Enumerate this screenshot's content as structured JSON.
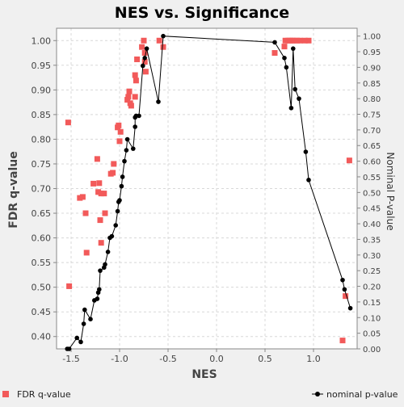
{
  "chart_data": {
    "type": "scatter",
    "title": "NES vs. Significance",
    "xlabel": "NES",
    "ylabel": "FDR q-value",
    "y2label": "Nominal P-value",
    "xlim": [
      -1.65,
      1.45
    ],
    "ylim": [
      0.375,
      1.025
    ],
    "y2lim": [
      0.0,
      1.025
    ],
    "xticks": [
      "-1.5",
      "-1.0",
      "-0.5",
      "0.0",
      "0.5",
      "1.0"
    ],
    "xtick_values": [
      -1.5,
      -1.0,
      -0.5,
      0.0,
      0.5,
      1.0
    ],
    "yticks": [
      "0.40",
      "0.45",
      "0.50",
      "0.55",
      "0.60",
      "0.65",
      "0.70",
      "0.75",
      "0.80",
      "0.85",
      "0.90",
      "0.95",
      "1.00"
    ],
    "ytick_values": [
      0.4,
      0.45,
      0.5,
      0.55,
      0.6,
      0.65,
      0.7,
      0.75,
      0.8,
      0.85,
      0.9,
      0.95,
      1.0
    ],
    "y2ticks": [
      "0.00",
      "0.05",
      "0.10",
      "0.15",
      "0.20",
      "0.25",
      "0.30",
      "0.35",
      "0.40",
      "0.45",
      "0.50",
      "0.55",
      "0.60",
      "0.65",
      "0.70",
      "0.75",
      "0.80",
      "0.85",
      "0.90",
      "0.95",
      "1.00"
    ],
    "y2tick_values": [
      0.0,
      0.05,
      0.1,
      0.15,
      0.2,
      0.25,
      0.3,
      0.35,
      0.4,
      0.45,
      0.5,
      0.55,
      0.6,
      0.65,
      0.7,
      0.75,
      0.8,
      0.85,
      0.9,
      0.95,
      1.0
    ],
    "grid": true,
    "legend_placement": "bottom",
    "series": [
      {
        "name": "FDR q-value",
        "axis": "left",
        "style": "markers",
        "color": "#f25a5a",
        "points": [
          [
            -1.53,
            0.834
          ],
          [
            -1.52,
            0.502
          ],
          [
            -1.41,
            0.681
          ],
          [
            -1.38,
            0.683
          ],
          [
            -1.35,
            0.65
          ],
          [
            -1.34,
            0.57
          ],
          [
            -1.27,
            0.71
          ],
          [
            -1.23,
            0.76
          ],
          [
            -1.22,
            0.693
          ],
          [
            -1.21,
            0.711
          ],
          [
            -1.2,
            0.636
          ],
          [
            -1.19,
            0.59
          ],
          [
            -1.19,
            0.69
          ],
          [
            -1.16,
            0.69
          ],
          [
            -1.15,
            0.65
          ],
          [
            -1.09,
            0.73
          ],
          [
            -1.07,
            0.732
          ],
          [
            -1.06,
            0.75
          ],
          [
            -1.02,
            0.824
          ],
          [
            -1.01,
            0.828
          ],
          [
            -1.0,
            0.796
          ],
          [
            -0.99,
            0.815
          ],
          [
            -0.92,
            0.88
          ],
          [
            -0.91,
            0.886
          ],
          [
            -0.9,
            0.897
          ],
          [
            -0.89,
            0.873
          ],
          [
            -0.88,
            0.868
          ],
          [
            -0.84,
            0.886
          ],
          [
            -0.84,
            0.93
          ],
          [
            -0.83,
            0.919
          ],
          [
            -0.82,
            0.962
          ],
          [
            -0.77,
            0.987
          ],
          [
            -0.75,
            1.0
          ],
          [
            -0.74,
            0.957
          ],
          [
            -0.74,
            0.975
          ],
          [
            -0.73,
            0.937
          ],
          [
            -0.59,
            1.0
          ],
          [
            -0.55,
            0.987
          ],
          [
            0.6,
            0.975
          ],
          [
            0.7,
            0.988
          ],
          [
            0.71,
            1.0
          ],
          [
            0.74,
            1.0
          ],
          [
            0.76,
            1.0
          ],
          [
            0.78,
            1.0
          ],
          [
            0.8,
            1.0
          ],
          [
            0.83,
            1.0
          ],
          [
            0.86,
            1.0
          ],
          [
            0.91,
            1.0
          ],
          [
            0.95,
            1.0
          ],
          [
            1.3,
            0.392
          ],
          [
            1.33,
            0.482
          ],
          [
            1.37,
            0.757
          ]
        ]
      },
      {
        "name": "nominal p-value",
        "axis": "right",
        "style": "line-markers",
        "color": "#000000",
        "points": [
          [
            -1.54,
            0.0
          ],
          [
            -1.52,
            0.0
          ],
          [
            -1.44,
            0.035
          ],
          [
            -1.4,
            0.022
          ],
          [
            -1.37,
            0.08
          ],
          [
            -1.36,
            0.125
          ],
          [
            -1.3,
            0.095
          ],
          [
            -1.26,
            0.155
          ],
          [
            -1.23,
            0.16
          ],
          [
            -1.22,
            0.18
          ],
          [
            -1.21,
            0.19
          ],
          [
            -1.2,
            0.25
          ],
          [
            -1.16,
            0.26
          ],
          [
            -1.15,
            0.27
          ],
          [
            -1.12,
            0.31
          ],
          [
            -1.1,
            0.355
          ],
          [
            -1.08,
            0.36
          ],
          [
            -1.04,
            0.395
          ],
          [
            -1.02,
            0.44
          ],
          [
            -1.01,
            0.47
          ],
          [
            -1.0,
            0.475
          ],
          [
            -0.98,
            0.52
          ],
          [
            -0.97,
            0.55
          ],
          [
            -0.95,
            0.6
          ],
          [
            -0.93,
            0.635
          ],
          [
            -0.92,
            0.67
          ],
          [
            -0.86,
            0.64
          ],
          [
            -0.84,
            0.71
          ],
          [
            -0.84,
            0.74
          ],
          [
            -0.83,
            0.745
          ],
          [
            -0.8,
            0.745
          ],
          [
            -0.76,
            0.905
          ],
          [
            -0.74,
            0.93
          ],
          [
            -0.72,
            0.96
          ],
          [
            -0.6,
            0.79
          ],
          [
            -0.55,
            1.0
          ],
          [
            0.6,
            0.98
          ],
          [
            0.7,
            0.93
          ],
          [
            0.72,
            0.9
          ],
          [
            0.77,
            0.77
          ],
          [
            0.79,
            0.96
          ],
          [
            0.81,
            0.83
          ],
          [
            0.85,
            0.8
          ],
          [
            0.92,
            0.63
          ],
          [
            0.95,
            0.54
          ],
          [
            1.3,
            0.22
          ],
          [
            1.32,
            0.19
          ],
          [
            1.38,
            0.13
          ]
        ]
      }
    ]
  }
}
